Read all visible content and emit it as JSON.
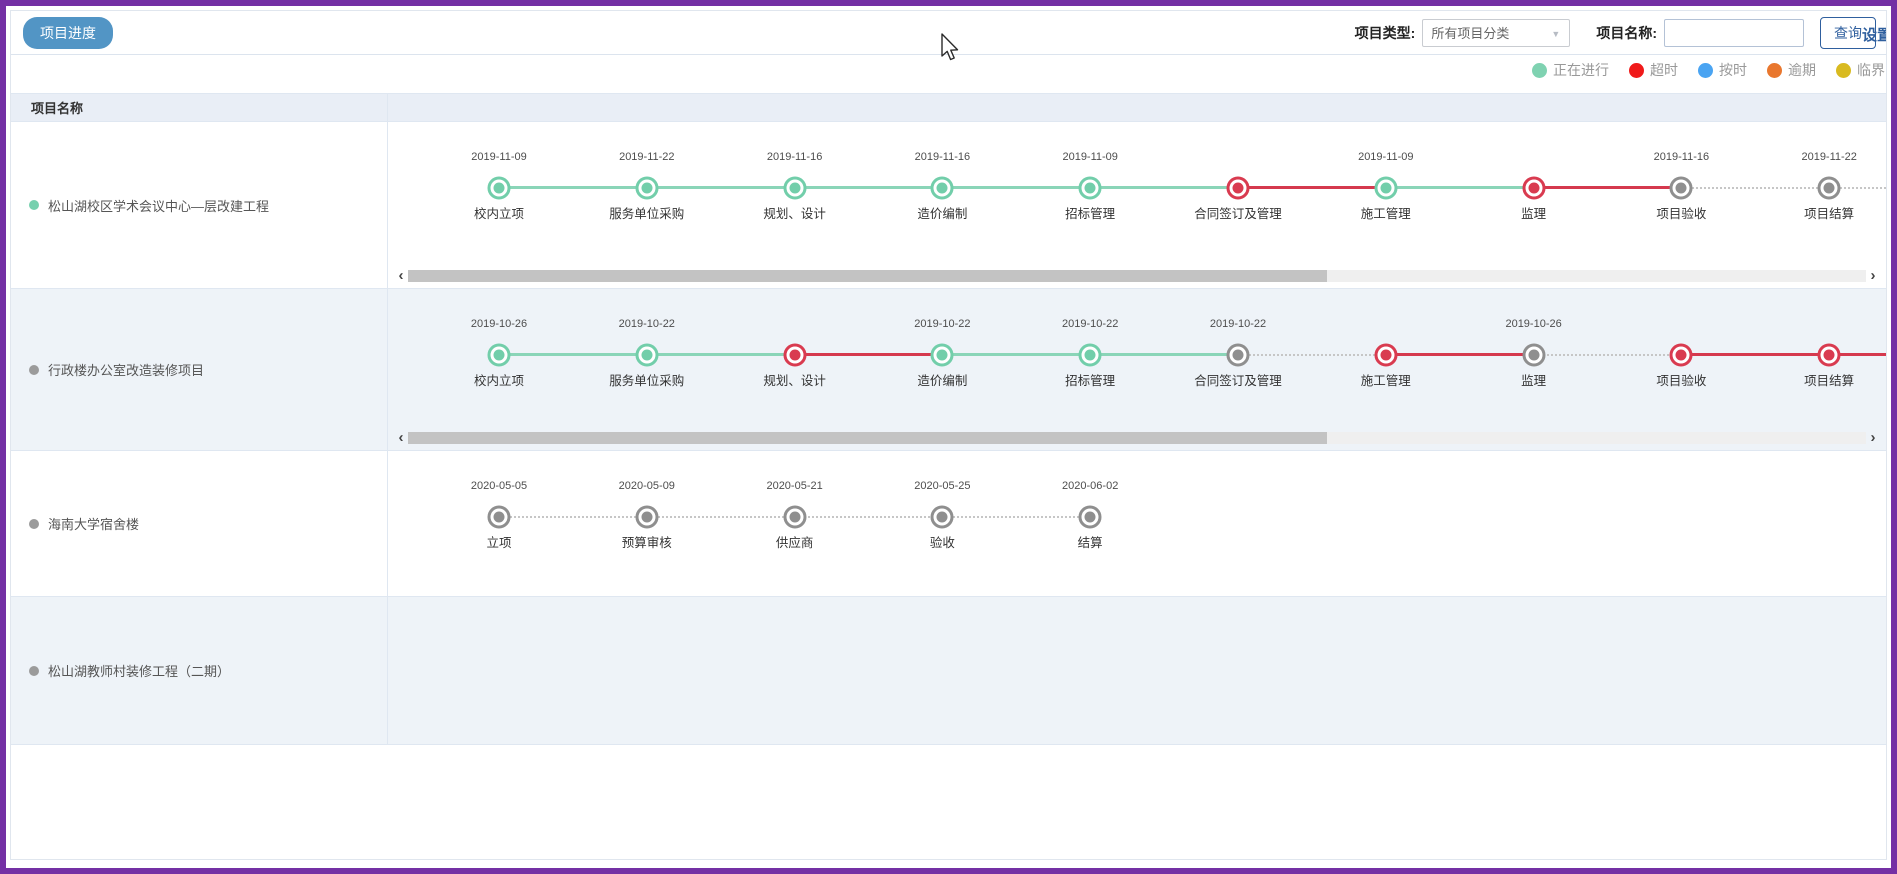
{
  "toolbar": {
    "progress_button": "项目进度",
    "project_type_label": "项目类型:",
    "project_type_value": "所有项目分类",
    "project_name_label": "项目名称:",
    "project_name_value": "",
    "search_button": "查询",
    "settings_link": "设置"
  },
  "legend": {
    "items": [
      {
        "label": "正在进行",
        "color": "#7fd2b1"
      },
      {
        "label": "超时",
        "color": "#f01a1a"
      },
      {
        "label": "按时",
        "color": "#4aa4f2"
      },
      {
        "label": "逾期",
        "color": "#e9772e"
      },
      {
        "label": "临界",
        "color": "#d9ba20"
      }
    ]
  },
  "status_colors": {
    "active": {
      "node": "#72ceaa",
      "line": "#8ad5b8"
    },
    "overtime": {
      "node": "#d93b50",
      "line": "#d5394e"
    },
    "pending": {
      "node": "#8f8f8f",
      "line": "dotted"
    }
  },
  "table": {
    "name_header": "项目名称",
    "rows": [
      {
        "name": "松山湖校区学术会议中心—层改建工程",
        "dot_color": "#76d0ae",
        "zebra": false,
        "scrollbar": true,
        "trailing": true,
        "stages": [
          {
            "label": "校内立项",
            "date": "2019-11-09",
            "status": "active"
          },
          {
            "label": "服务单位采购",
            "date": "2019-11-22",
            "status": "active"
          },
          {
            "label": "规划、设计",
            "date": "2019-11-16",
            "status": "active"
          },
          {
            "label": "造价编制",
            "date": "2019-11-16",
            "status": "active"
          },
          {
            "label": "招标管理",
            "date": "2019-11-09",
            "status": "active"
          },
          {
            "label": "合同签订及管理",
            "date": "",
            "status": "overtime"
          },
          {
            "label": "施工管理",
            "date": "2019-11-09",
            "status": "active"
          },
          {
            "label": "监理",
            "date": "",
            "status": "overtime"
          },
          {
            "label": "项目验收",
            "date": "2019-11-16",
            "status": "pending"
          },
          {
            "label": "项目结算",
            "date": "2019-11-22",
            "status": "pending"
          }
        ]
      },
      {
        "name": "行政楼办公室改造装修项目",
        "dot_color": "#9b9b9b",
        "zebra": true,
        "scrollbar": true,
        "trailing": true,
        "stages": [
          {
            "label": "校内立项",
            "date": "2019-10-26",
            "status": "active"
          },
          {
            "label": "服务单位采购",
            "date": "2019-10-22",
            "status": "active"
          },
          {
            "label": "规划、设计",
            "date": "",
            "status": "overtime"
          },
          {
            "label": "造价编制",
            "date": "2019-10-22",
            "status": "active"
          },
          {
            "label": "招标管理",
            "date": "2019-10-22",
            "status": "active"
          },
          {
            "label": "合同签订及管理",
            "date": "2019-10-22",
            "status": "pending"
          },
          {
            "label": "施工管理",
            "date": "",
            "status": "overtime"
          },
          {
            "label": "监理",
            "date": "2019-10-26",
            "status": "pending"
          },
          {
            "label": "项目验收",
            "date": "",
            "status": "overtime"
          },
          {
            "label": "项目结算",
            "date": "",
            "status": "overtime"
          }
        ]
      },
      {
        "name": "海南大学宿舍楼",
        "dot_color": "#9b9b9b",
        "zebra": false,
        "scrollbar": false,
        "trailing": false,
        "stages": [
          {
            "label": "立项",
            "date": "2020-05-05",
            "status": "pending"
          },
          {
            "label": "预算审核",
            "date": "2020-05-09",
            "status": "pending"
          },
          {
            "label": "供应商",
            "date": "2020-05-21",
            "status": "pending"
          },
          {
            "label": "验收",
            "date": "2020-05-25",
            "status": "pending"
          },
          {
            "label": "结算",
            "date": "2020-06-02",
            "status": "pending"
          }
        ]
      },
      {
        "name": "松山湖教师村装修工程（二期）",
        "dot_color": "#9b9b9b",
        "zebra": true,
        "scrollbar": false,
        "trailing": false,
        "stages": []
      }
    ]
  }
}
